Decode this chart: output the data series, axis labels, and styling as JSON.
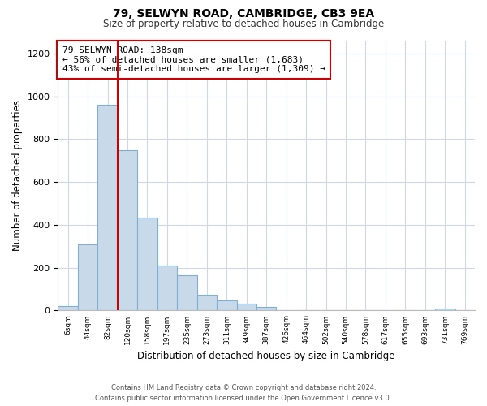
{
  "title": "79, SELWYN ROAD, CAMBRIDGE, CB3 9EA",
  "subtitle": "Size of property relative to detached houses in Cambridge",
  "xlabel": "Distribution of detached houses by size in Cambridge",
  "ylabel": "Number of detached properties",
  "bar_labels": [
    "6sqm",
    "44sqm",
    "82sqm",
    "120sqm",
    "158sqm",
    "197sqm",
    "235sqm",
    "273sqm",
    "311sqm",
    "349sqm",
    "387sqm",
    "426sqm",
    "464sqm",
    "502sqm",
    "540sqm",
    "578sqm",
    "617sqm",
    "655sqm",
    "693sqm",
    "731sqm",
    "769sqm"
  ],
  "bar_values": [
    20,
    310,
    960,
    750,
    435,
    210,
    165,
    75,
    48,
    33,
    18,
    0,
    0,
    0,
    0,
    0,
    0,
    0,
    0,
    10,
    0
  ],
  "bar_color": "#c8daea",
  "bar_edge_color": "#7eb0d5",
  "vline_color": "#cc0000",
  "annotation_text": "79 SELWYN ROAD: 138sqm\n← 56% of detached houses are smaller (1,683)\n43% of semi-detached houses are larger (1,309) →",
  "annotation_box_edge_color": "#cc0000",
  "ylim": [
    0,
    1260
  ],
  "yticks": [
    0,
    200,
    400,
    600,
    800,
    1000,
    1200
  ],
  "footer_line1": "Contains HM Land Registry data © Crown copyright and database right 2024.",
  "footer_line2": "Contains public sector information licensed under the Open Government Licence v3.0.",
  "background_color": "#ffffff",
  "grid_color": "#d0d8e8"
}
